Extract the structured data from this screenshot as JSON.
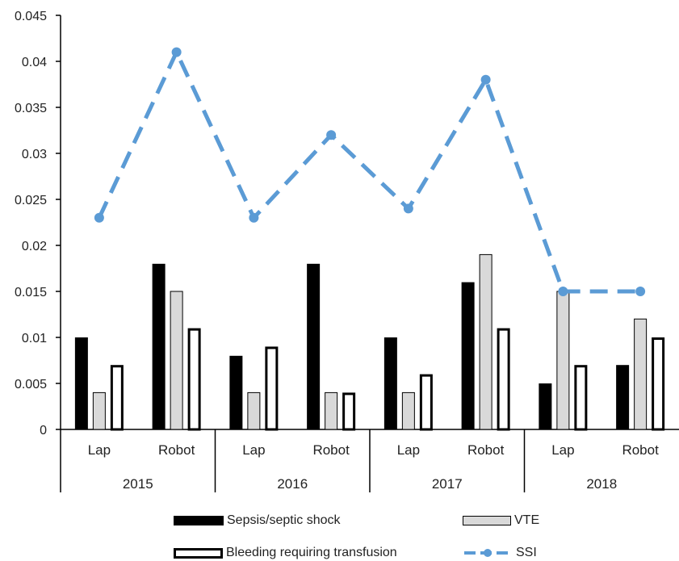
{
  "chart_data": {
    "type": "bar",
    "groups": [
      {
        "label": "2015",
        "categories": [
          "Lap",
          "Robot"
        ]
      },
      {
        "label": "2016",
        "categories": [
          "Lap",
          "Robot"
        ]
      },
      {
        "label": "2017",
        "categories": [
          "Lap",
          "Robot"
        ]
      },
      {
        "label": "2018",
        "categories": [
          "Lap",
          "Robot"
        ]
      }
    ],
    "categories": [
      "Lap",
      "Robot",
      "Lap",
      "Robot",
      "Lap",
      "Robot",
      "Lap",
      "Robot"
    ],
    "series": [
      {
        "name": "Sepsis/septic shock",
        "type": "bar",
        "color": "#000000",
        "values": [
          0.01,
          0.018,
          0.008,
          0.018,
          0.01,
          0.016,
          0.005,
          0.007
        ]
      },
      {
        "name": "VTE",
        "type": "bar",
        "color": "#d9d9d9",
        "values": [
          0.004,
          0.015,
          0.004,
          0.004,
          0.004,
          0.019,
          0.015,
          0.012
        ]
      },
      {
        "name": "Bleeding requiring transfusion",
        "type": "bar",
        "color": "#ffffff",
        "values": [
          0.007,
          0.011,
          0.009,
          0.004,
          0.006,
          0.011,
          0.007,
          0.01
        ]
      },
      {
        "name": "SSI",
        "type": "line",
        "style": "dashed",
        "color": "#5b9bd5",
        "values": [
          0.023,
          0.041,
          0.023,
          0.032,
          0.024,
          0.038,
          0.015,
          0.015
        ]
      }
    ],
    "ylim": [
      0,
      0.045
    ],
    "yticks": [
      "0",
      "0.005",
      "0.01",
      "0.015",
      "0.02",
      "0.025",
      "0.03",
      "0.035",
      "0.04",
      "0.045"
    ],
    "legend_position": "bottom",
    "grid": false
  }
}
